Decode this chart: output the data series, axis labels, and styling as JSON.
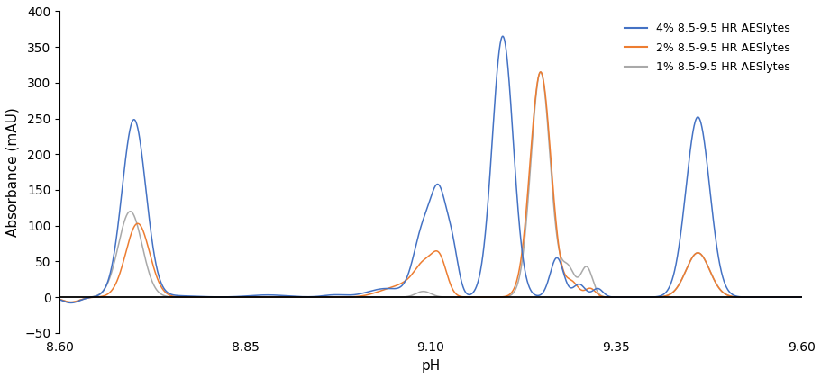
{
  "title": "",
  "xlabel": "pH",
  "ylabel": "Absorbance (mAU)",
  "xlim": [
    8.6,
    9.6
  ],
  "ylim": [
    -50,
    400
  ],
  "yticks": [
    -50,
    0,
    50,
    100,
    150,
    200,
    250,
    300,
    350,
    400
  ],
  "xticks": [
    8.6,
    8.85,
    9.1,
    9.35,
    9.6
  ],
  "legend_labels": [
    "4% 8.5-9.5 HR AESlytes",
    "2% 8.5-9.5 HR AESlytes",
    "1% 8.5-9.5 HR AESlytes"
  ],
  "colors": [
    "#4472C4",
    "#ED7D31",
    "#A9A9A9"
  ],
  "linewidth": 1.1,
  "background_color": "#FFFFFF"
}
